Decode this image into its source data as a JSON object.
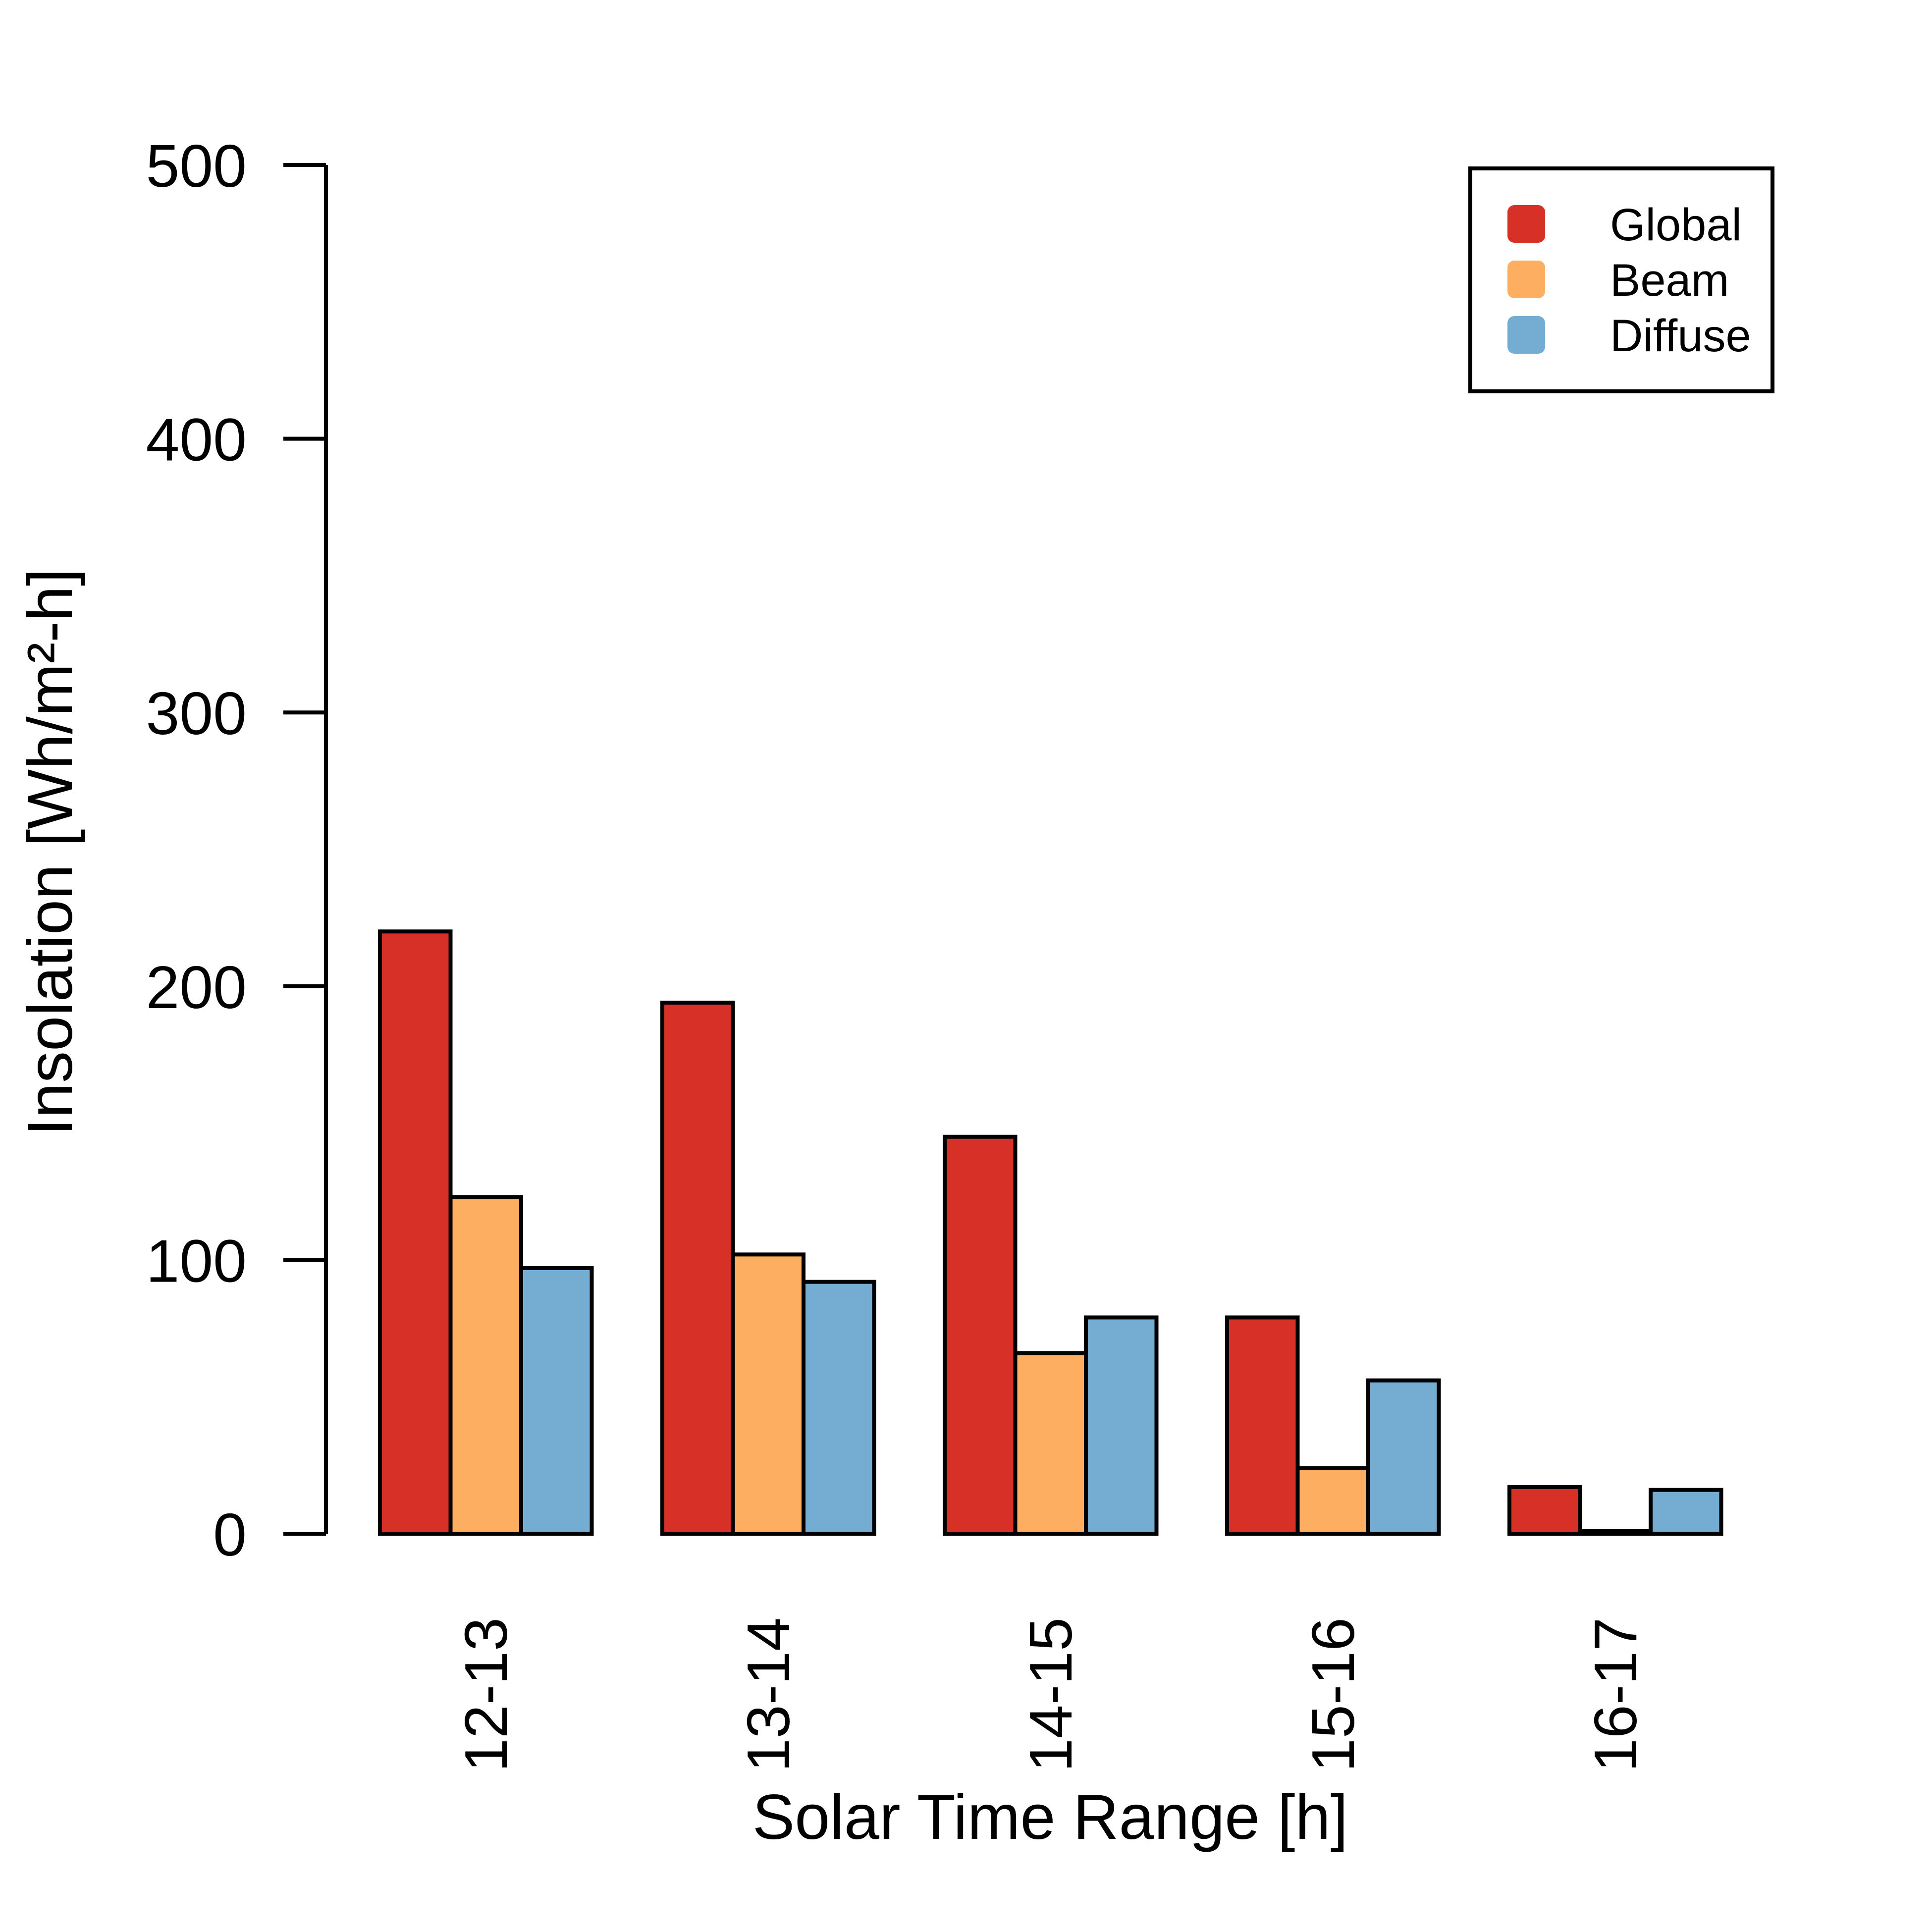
{
  "chart_data": {
    "type": "bar",
    "title": "",
    "xlabel": "Solar Time Range [h]",
    "ylabel": "Insolation [Wh/m²-h]",
    "ylim": [
      0,
      500
    ],
    "yticks": [
      0,
      100,
      200,
      300,
      400,
      500
    ],
    "categories": [
      "12-13",
      "13-14",
      "14-15",
      "15-16",
      "16-17"
    ],
    "series": [
      {
        "name": "Global",
        "color": "#d73027",
        "values": [
          220,
          194,
          145,
          79,
          17
        ]
      },
      {
        "name": "Beam",
        "color": "#fdae61",
        "values": [
          123,
          102,
          66,
          24,
          1
        ]
      },
      {
        "name": "Diffuse",
        "color": "#74add1",
        "values": [
          97,
          92,
          79,
          56,
          16
        ]
      }
    ],
    "legend": {
      "position": "top-right"
    },
    "grid": false
  }
}
